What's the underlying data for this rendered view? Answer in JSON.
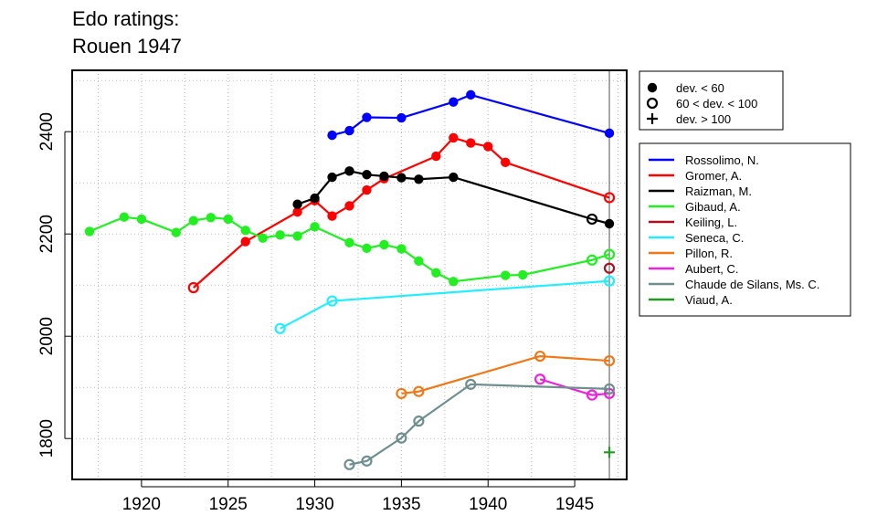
{
  "chart_data": {
    "type": "line",
    "title_lines": [
      "Edo ratings:",
      "Rouen 1947"
    ],
    "xlabel": "",
    "ylabel": "",
    "xlim": [
      1916,
      1948
    ],
    "ylim": [
      1720,
      2520
    ],
    "x_ticks": [
      1920,
      1925,
      1930,
      1935,
      1940,
      1945
    ],
    "y_ticks": [
      1800,
      2000,
      2200,
      2400
    ],
    "grid": true,
    "reference_year": 1947,
    "marker_legend": [
      {
        "marker": "filled",
        "label": "dev. < 60"
      },
      {
        "marker": "open",
        "label": "60 < dev. < 100"
      },
      {
        "marker": "plus",
        "label": "dev. > 100"
      }
    ],
    "series": [
      {
        "name": "Rossolimo, N.",
        "color": "#0000ff",
        "points": [
          {
            "x": 1931,
            "y": 2393,
            "m": "f"
          },
          {
            "x": 1932,
            "y": 2402,
            "m": "f"
          },
          {
            "x": 1933,
            "y": 2428,
            "m": "f"
          },
          {
            "x": 1935,
            "y": 2427,
            "m": "f"
          },
          {
            "x": 1938,
            "y": 2458,
            "m": "f"
          },
          {
            "x": 1939,
            "y": 2472,
            "m": "f"
          },
          {
            "x": 1947,
            "y": 2397,
            "m": "f"
          }
        ]
      },
      {
        "name": "Gromer, A.",
        "color": "#ff0000",
        "points": [
          {
            "x": 1923,
            "y": 2095,
            "m": "o"
          },
          {
            "x": 1926,
            "y": 2185,
            "m": "f"
          },
          {
            "x": 1929,
            "y": 2243,
            "m": "f"
          },
          {
            "x": 1930,
            "y": 2265,
            "m": "f"
          },
          {
            "x": 1931,
            "y": 2235,
            "m": "f"
          },
          {
            "x": 1932,
            "y": 2255,
            "m": "f"
          },
          {
            "x": 1933,
            "y": 2286,
            "m": "f"
          },
          {
            "x": 1934,
            "y": 2308,
            "m": "f"
          },
          {
            "x": 1937,
            "y": 2352,
            "m": "f"
          },
          {
            "x": 1938,
            "y": 2388,
            "m": "f"
          },
          {
            "x": 1939,
            "y": 2378,
            "m": "f"
          },
          {
            "x": 1940,
            "y": 2371,
            "m": "f"
          },
          {
            "x": 1941,
            "y": 2340,
            "m": "f"
          },
          {
            "x": 1947,
            "y": 2271,
            "m": "o"
          }
        ]
      },
      {
        "name": "Raizman, M.",
        "color": "#000000",
        "points": [
          {
            "x": 1929,
            "y": 2258,
            "m": "f"
          },
          {
            "x": 1930,
            "y": 2270,
            "m": "f"
          },
          {
            "x": 1931,
            "y": 2311,
            "m": "f"
          },
          {
            "x": 1932,
            "y": 2323,
            "m": "f"
          },
          {
            "x": 1933,
            "y": 2316,
            "m": "f"
          },
          {
            "x": 1934,
            "y": 2313,
            "m": "f"
          },
          {
            "x": 1935,
            "y": 2310,
            "m": "f"
          },
          {
            "x": 1936,
            "y": 2307,
            "m": "f"
          },
          {
            "x": 1938,
            "y": 2311,
            "m": "f"
          },
          {
            "x": 1946,
            "y": 2229,
            "m": "o"
          },
          {
            "x": 1947,
            "y": 2220,
            "m": "f"
          }
        ]
      },
      {
        "name": "Gibaud, A.",
        "color": "#22ee22",
        "points": [
          {
            "x": 1917,
            "y": 2205,
            "m": "f"
          },
          {
            "x": 1919,
            "y": 2233,
            "m": "f"
          },
          {
            "x": 1920,
            "y": 2229,
            "m": "f"
          },
          {
            "x": 1922,
            "y": 2203,
            "m": "f"
          },
          {
            "x": 1923,
            "y": 2226,
            "m": "f"
          },
          {
            "x": 1924,
            "y": 2232,
            "m": "f"
          },
          {
            "x": 1925,
            "y": 2229,
            "m": "f"
          },
          {
            "x": 1926,
            "y": 2207,
            "m": "f"
          },
          {
            "x": 1927,
            "y": 2192,
            "m": "f"
          },
          {
            "x": 1928,
            "y": 2198,
            "m": "f"
          },
          {
            "x": 1929,
            "y": 2196,
            "m": "f"
          },
          {
            "x": 1930,
            "y": 2214,
            "m": "f"
          },
          {
            "x": 1932,
            "y": 2183,
            "m": "f"
          },
          {
            "x": 1933,
            "y": 2172,
            "m": "f"
          },
          {
            "x": 1934,
            "y": 2179,
            "m": "f"
          },
          {
            "x": 1935,
            "y": 2171,
            "m": "f"
          },
          {
            "x": 1936,
            "y": 2147,
            "m": "f"
          },
          {
            "x": 1937,
            "y": 2124,
            "m": "f"
          },
          {
            "x": 1938,
            "y": 2107,
            "m": "f"
          },
          {
            "x": 1941,
            "y": 2119,
            "m": "f"
          },
          {
            "x": 1942,
            "y": 2120,
            "m": "f"
          },
          {
            "x": 1946,
            "y": 2149,
            "m": "o"
          },
          {
            "x": 1947,
            "y": 2160,
            "m": "o"
          }
        ]
      },
      {
        "name": "Keiling, L.",
        "color": "#aa1122",
        "points": [
          {
            "x": 1947,
            "y": 2133,
            "m": "o"
          }
        ]
      },
      {
        "name": "Seneca, C.",
        "color": "#22eeff",
        "points": [
          {
            "x": 1928,
            "y": 2015,
            "m": "o"
          },
          {
            "x": 1931,
            "y": 2069,
            "m": "o"
          },
          {
            "x": 1947,
            "y": 2108,
            "m": "o"
          }
        ]
      },
      {
        "name": "Pillon, R.",
        "color": "#f07818",
        "points": [
          {
            "x": 1935,
            "y": 1888,
            "m": "o"
          },
          {
            "x": 1936,
            "y": 1892,
            "m": "o"
          },
          {
            "x": 1943,
            "y": 1961,
            "m": "o"
          },
          {
            "x": 1947,
            "y": 1952,
            "m": "o"
          }
        ]
      },
      {
        "name": "Aubert, C.",
        "color": "#ee22dd",
        "points": [
          {
            "x": 1943,
            "y": 1916,
            "m": "o"
          },
          {
            "x": 1946,
            "y": 1885,
            "m": "o"
          },
          {
            "x": 1947,
            "y": 1888,
            "m": "o"
          }
        ]
      },
      {
        "name": "Chaude de Silans, Ms. C.",
        "color": "#6f8f8f",
        "points": [
          {
            "x": 1932,
            "y": 1749,
            "m": "o"
          },
          {
            "x": 1933,
            "y": 1756,
            "m": "o"
          },
          {
            "x": 1935,
            "y": 1801,
            "m": "o"
          },
          {
            "x": 1936,
            "y": 1834,
            "m": "o"
          },
          {
            "x": 1939,
            "y": 1906,
            "m": "o"
          },
          {
            "x": 1947,
            "y": 1897,
            "m": "o"
          }
        ]
      },
      {
        "name": "Viaud, A.",
        "color": "#229922",
        "points": [
          {
            "x": 1947,
            "y": 1773,
            "m": "p"
          }
        ]
      }
    ]
  }
}
